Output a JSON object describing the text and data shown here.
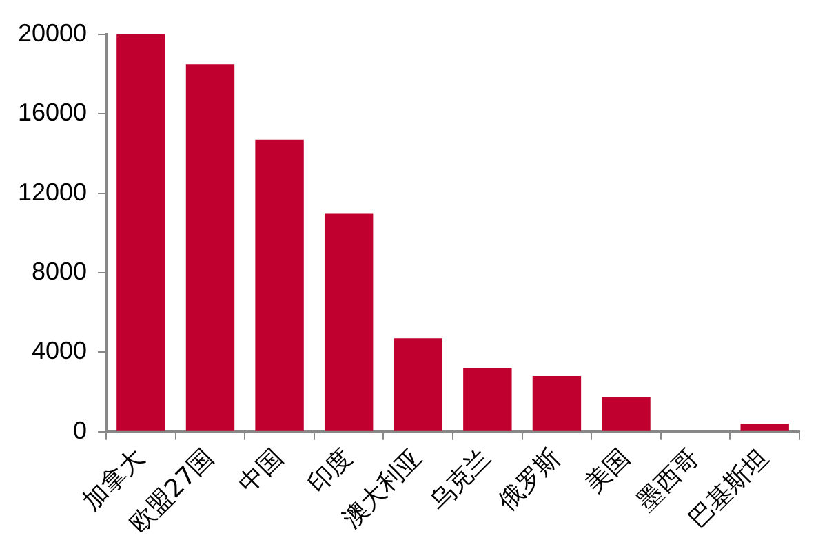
{
  "chart_data": {
    "type": "bar",
    "categories": [
      "加拿大",
      "欧盟27国",
      "中国",
      "印度",
      "澳大利亚",
      "乌克兰",
      "俄罗斯",
      "美国",
      "墨西哥",
      "巴基斯坦"
    ],
    "values": [
      20000,
      18500,
      14700,
      11000,
      4700,
      3200,
      2800,
      1750,
      0,
      400
    ],
    "color": "#c0002e",
    "ylim": [
      0,
      20000
    ],
    "yticks": [
      0,
      4000,
      8000,
      12000,
      16000,
      20000
    ],
    "grid": false,
    "legend": false
  }
}
